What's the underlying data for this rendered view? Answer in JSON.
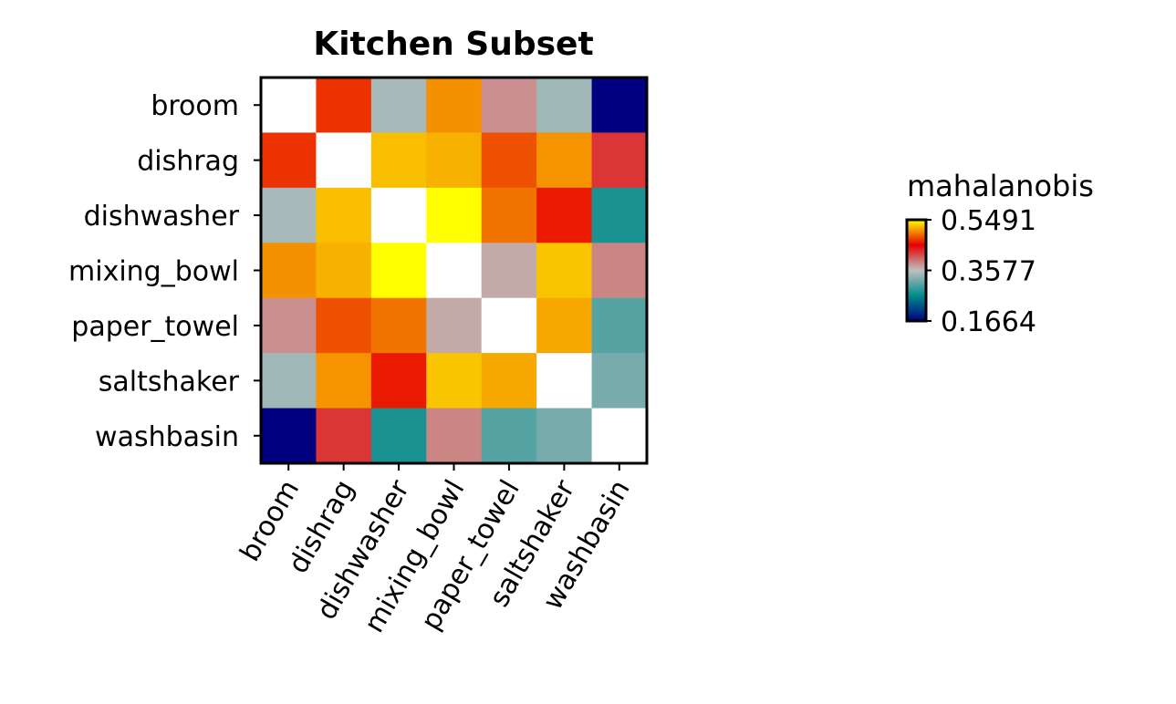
{
  "chart_data": {
    "type": "heatmap",
    "title": "Kitchen Subset",
    "xlabel": "",
    "ylabel": "",
    "x_categories": [
      "broom",
      "dishrag",
      "dishwasher",
      "mixing_bowl",
      "paper_towel",
      "saltshaker",
      "washbasin"
    ],
    "y_categories": [
      "broom",
      "dishrag",
      "dishwasher",
      "mixing_bowl",
      "paper_towel",
      "saltshaker",
      "washbasin"
    ],
    "values": [
      [
        null,
        0.472,
        0.346,
        0.508,
        0.382,
        0.342,
        0.166
      ],
      [
        0.472,
        null,
        0.525,
        0.52,
        0.484,
        0.509,
        0.427
      ],
      [
        0.346,
        0.525,
        null,
        0.549,
        0.497,
        0.463,
        0.275
      ],
      [
        0.508,
        0.52,
        0.549,
        null,
        0.369,
        0.527,
        0.387
      ],
      [
        0.382,
        0.484,
        0.497,
        0.369,
        null,
        0.516,
        0.305
      ],
      [
        0.342,
        0.509,
        0.463,
        0.527,
        0.516,
        null,
        0.322
      ],
      [
        0.166,
        0.427,
        0.275,
        0.387,
        0.305,
        0.322,
        null
      ]
    ],
    "diagonal_color": "#ffffff",
    "colorbar": {
      "label": "mahalanobis",
      "min": 0.1664,
      "max": 0.5491,
      "ticks": [
        "0.5491",
        "0.3577",
        "0.1664"
      ],
      "tick_values": [
        0.5491,
        0.3577,
        0.1664
      ]
    },
    "colormap": [
      {
        "stop": 0.0,
        "color": "#000080"
      },
      {
        "stop": 0.25,
        "color": "#008b8b"
      },
      {
        "stop": 0.5,
        "color": "#c0c0c0"
      },
      {
        "stop": 0.75,
        "color": "#e60000"
      },
      {
        "stop": 1.0,
        "color": "#ffff00"
      }
    ]
  }
}
